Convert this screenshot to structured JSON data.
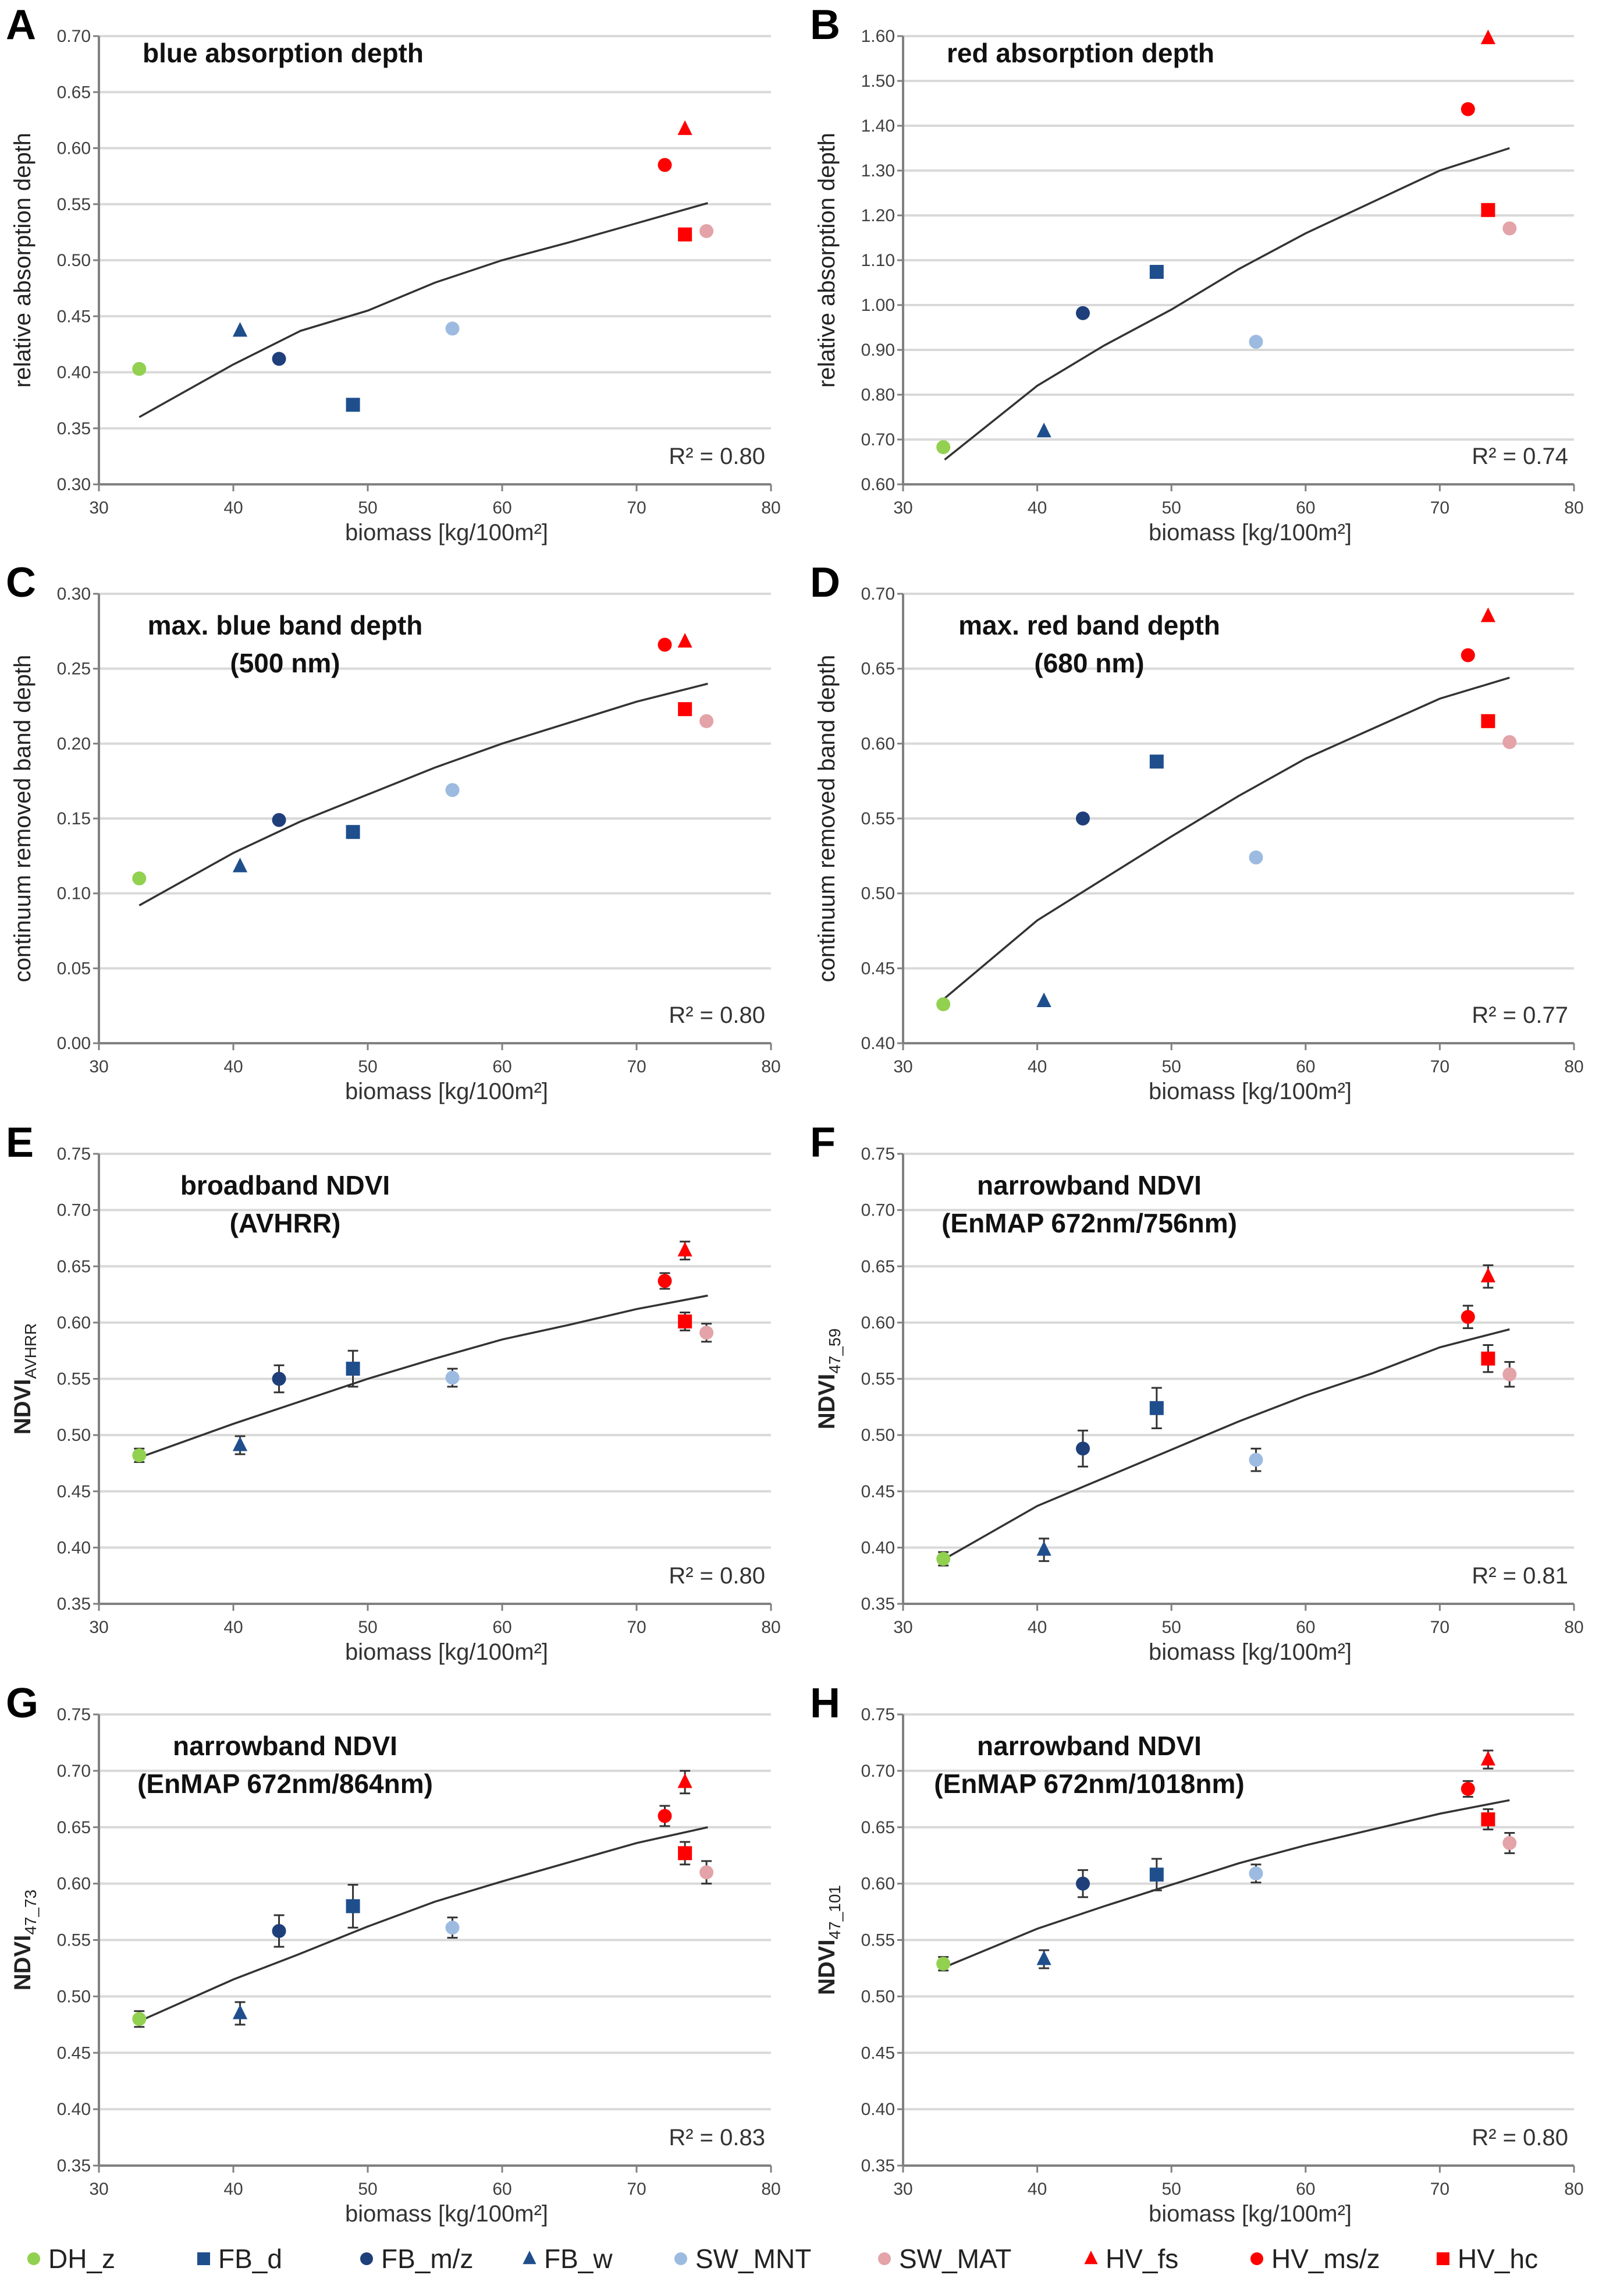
{
  "legend": [
    {
      "name": "DH_z",
      "marker": "circle",
      "color": "#92d050"
    },
    {
      "name": "FB_d",
      "marker": "square",
      "color": "#1f4e8c"
    },
    {
      "name": "FB_m/z",
      "marker": "circle",
      "color": "#1f3f7a"
    },
    {
      "name": "FB_w",
      "marker": "triangle",
      "color": "#1f4e8c"
    },
    {
      "name": "SW_MNT",
      "marker": "circle",
      "color": "#9dbbe0"
    },
    {
      "name": "SW_MAT",
      "marker": "circle",
      "color": "#e3a3a8"
    },
    {
      "name": "HV_fs",
      "marker": "triangle",
      "color": "#ff0000"
    },
    {
      "name": "HV_ms/z",
      "marker": "circle",
      "color": "#ff0000"
    },
    {
      "name": "HV_hc",
      "marker": "square",
      "color": "#ff0000"
    }
  ],
  "chart_data": [
    {
      "panel": "A",
      "type": "scatter",
      "title": "blue absorption depth",
      "xlabel": "biomass [kg/100m²]",
      "ylabel": "relative absorption depth",
      "xlim": [
        30,
        80
      ],
      "ylim": [
        0.3,
        0.7
      ],
      "xticks": [
        "30",
        "40",
        "50",
        "60",
        "70",
        "80"
      ],
      "yticks": [
        "0.30",
        "0.35",
        "0.40",
        "0.45",
        "0.50",
        "0.55",
        "0.60",
        "0.65",
        "0.70"
      ],
      "grid": true,
      "r2": "R² = 0.80",
      "trend": [
        [
          33,
          0.36
        ],
        [
          40,
          0.407
        ],
        [
          45,
          0.437
        ],
        [
          50,
          0.455
        ],
        [
          55,
          0.48
        ],
        [
          60,
          0.5
        ],
        [
          65,
          0.516
        ],
        [
          70,
          0.533
        ],
        [
          75.3,
          0.551
        ]
      ],
      "points": [
        {
          "series": "DH_z",
          "x": 33,
          "y": 0.403
        },
        {
          "series": "FB_w",
          "x": 40.5,
          "y": 0.437
        },
        {
          "series": "FB_m/z",
          "x": 43.4,
          "y": 0.412
        },
        {
          "series": "FB_d",
          "x": 48.9,
          "y": 0.371
        },
        {
          "series": "SW_MNT",
          "x": 56.3,
          "y": 0.439
        },
        {
          "series": "HV_ms/z",
          "x": 72.1,
          "y": 0.585
        },
        {
          "series": "HV_fs",
          "x": 73.6,
          "y": 0.617
        },
        {
          "series": "HV_hc",
          "x": 73.6,
          "y": 0.523
        },
        {
          "series": "SW_MAT",
          "x": 75.2,
          "y": 0.526
        }
      ]
    },
    {
      "panel": "B",
      "type": "scatter",
      "title": "red absorption depth",
      "xlabel": "biomass [kg/100m²]",
      "ylabel": "relative absorption depth",
      "xlim": [
        30,
        80
      ],
      "ylim": [
        0.6,
        1.6
      ],
      "xticks": [
        "30",
        "40",
        "50",
        "60",
        "70",
        "80"
      ],
      "yticks": [
        "0.60",
        "0.70",
        "0.80",
        "0.90",
        "1.00",
        "1.10",
        "1.20",
        "1.30",
        "1.40",
        "1.50",
        "1.60"
      ],
      "grid": true,
      "r2": "R² = 0.74",
      "trend": [
        [
          33.1,
          0.655
        ],
        [
          40,
          0.82
        ],
        [
          45,
          0.91
        ],
        [
          50,
          0.99
        ],
        [
          55,
          1.08
        ],
        [
          60,
          1.16
        ],
        [
          65,
          1.23
        ],
        [
          70,
          1.3
        ],
        [
          75.2,
          1.35
        ]
      ],
      "points": [
        {
          "series": "DH_z",
          "x": 33,
          "y": 0.683
        },
        {
          "series": "FB_w",
          "x": 40.5,
          "y": 0.718
        },
        {
          "series": "FB_m/z",
          "x": 43.4,
          "y": 0.982
        },
        {
          "series": "FB_d",
          "x": 48.9,
          "y": 1.074
        },
        {
          "series": "SW_MNT",
          "x": 56.3,
          "y": 0.918
        },
        {
          "series": "HV_ms/z",
          "x": 72.1,
          "y": 1.437
        },
        {
          "series": "HV_fs",
          "x": 73.6,
          "y": 1.595
        },
        {
          "series": "HV_hc",
          "x": 73.6,
          "y": 1.212
        },
        {
          "series": "SW_MAT",
          "x": 75.2,
          "y": 1.171
        }
      ]
    },
    {
      "panel": "C",
      "type": "scatter",
      "title": "max. blue band depth",
      "subtitle": "(500 nm)",
      "xlabel": "biomass [kg/100m²]",
      "ylabel": "continuum removed band depth",
      "xlim": [
        30,
        80
      ],
      "ylim": [
        0.0,
        0.3
      ],
      "xticks": [
        "30",
        "40",
        "50",
        "60",
        "70",
        "80"
      ],
      "yticks": [
        "0.00",
        "0.05",
        "0.10",
        "0.15",
        "0.20",
        "0.25",
        "0.30"
      ],
      "grid": true,
      "r2": "R² = 0.80",
      "trend": [
        [
          33,
          0.092
        ],
        [
          40,
          0.127
        ],
        [
          45,
          0.148
        ],
        [
          50,
          0.166
        ],
        [
          55,
          0.184
        ],
        [
          60,
          0.2
        ],
        [
          65,
          0.214
        ],
        [
          70,
          0.228
        ],
        [
          75.3,
          0.24
        ]
      ],
      "points": [
        {
          "series": "DH_z",
          "x": 33,
          "y": 0.11
        },
        {
          "series": "FB_w",
          "x": 40.5,
          "y": 0.118
        },
        {
          "series": "FB_m/z",
          "x": 43.4,
          "y": 0.149
        },
        {
          "series": "FB_d",
          "x": 48.9,
          "y": 0.141
        },
        {
          "series": "SW_MNT",
          "x": 56.3,
          "y": 0.169
        },
        {
          "series": "HV_ms/z",
          "x": 72.1,
          "y": 0.266
        },
        {
          "series": "HV_fs",
          "x": 73.6,
          "y": 0.268
        },
        {
          "series": "HV_hc",
          "x": 73.6,
          "y": 0.223
        },
        {
          "series": "SW_MAT",
          "x": 75.2,
          "y": 0.215
        }
      ]
    },
    {
      "panel": "D",
      "type": "scatter",
      "title": "max. red band depth",
      "subtitle": "(680 nm)",
      "xlabel": "biomass [kg/100m²]",
      "ylabel": "continuum removed band depth",
      "xlim": [
        30,
        80
      ],
      "ylim": [
        0.4,
        0.7
      ],
      "xticks": [
        "30",
        "40",
        "50",
        "60",
        "70",
        "80"
      ],
      "yticks": [
        "0.40",
        "0.45",
        "0.50",
        "0.55",
        "0.60",
        "0.65",
        "0.70"
      ],
      "grid": true,
      "r2": "R² = 0.77",
      "trend": [
        [
          33.1,
          0.43
        ],
        [
          40,
          0.482
        ],
        [
          45,
          0.51
        ],
        [
          50,
          0.538
        ],
        [
          55,
          0.565
        ],
        [
          60,
          0.59
        ],
        [
          65,
          0.61
        ],
        [
          70,
          0.63
        ],
        [
          75.2,
          0.644
        ]
      ],
      "points": [
        {
          "series": "DH_z",
          "x": 33,
          "y": 0.426
        },
        {
          "series": "FB_w",
          "x": 40.5,
          "y": 0.428
        },
        {
          "series": "FB_m/z",
          "x": 43.4,
          "y": 0.55
        },
        {
          "series": "FB_d",
          "x": 48.9,
          "y": 0.588
        },
        {
          "series": "SW_MNT",
          "x": 56.3,
          "y": 0.524
        },
        {
          "series": "HV_ms/z",
          "x": 72.1,
          "y": 0.659
        },
        {
          "series": "HV_fs",
          "x": 73.6,
          "y": 0.685
        },
        {
          "series": "HV_hc",
          "x": 73.6,
          "y": 0.615
        },
        {
          "series": "SW_MAT",
          "x": 75.2,
          "y": 0.601
        }
      ]
    },
    {
      "panel": "E",
      "type": "scatter",
      "title": "broadband NDVI",
      "subtitle": "(AVHRR)",
      "xlabel": "biomass [kg/100m²]",
      "ylabel": "NDVI",
      "ylabel_sub": "AVHRR",
      "xlim": [
        30,
        80
      ],
      "ylim": [
        0.35,
        0.75
      ],
      "xticks": [
        "30",
        "40",
        "50",
        "60",
        "70",
        "80"
      ],
      "yticks": [
        "0.35",
        "0.40",
        "0.45",
        "0.50",
        "0.55",
        "0.60",
        "0.65",
        "0.70",
        "0.75"
      ],
      "grid": true,
      "r2": "R² = 0.80",
      "trend": [
        [
          33,
          0.48
        ],
        [
          40,
          0.51
        ],
        [
          45,
          0.53
        ],
        [
          50,
          0.55
        ],
        [
          55,
          0.568
        ],
        [
          60,
          0.585
        ],
        [
          65,
          0.598
        ],
        [
          70,
          0.612
        ],
        [
          75.3,
          0.624
        ]
      ],
      "points": [
        {
          "series": "DH_z",
          "x": 33,
          "y": 0.482,
          "err": 0.006
        },
        {
          "series": "FB_w",
          "x": 40.5,
          "y": 0.491,
          "err": 0.008
        },
        {
          "series": "FB_m/z",
          "x": 43.4,
          "y": 0.55,
          "err": 0.012
        },
        {
          "series": "FB_d",
          "x": 48.9,
          "y": 0.559,
          "err": 0.016
        },
        {
          "series": "SW_MNT",
          "x": 56.3,
          "y": 0.551,
          "err": 0.008
        },
        {
          "series": "HV_ms/z",
          "x": 72.1,
          "y": 0.637,
          "err": 0.007
        },
        {
          "series": "HV_fs",
          "x": 73.6,
          "y": 0.664,
          "err": 0.008
        },
        {
          "series": "HV_hc",
          "x": 73.6,
          "y": 0.601,
          "err": 0.008
        },
        {
          "series": "SW_MAT",
          "x": 75.2,
          "y": 0.591,
          "err": 0.008
        }
      ]
    },
    {
      "panel": "F",
      "type": "scatter",
      "title": "narrowband NDVI",
      "subtitle": "(EnMAP 672nm/756nm)",
      "xlabel": "biomass [kg/100m²]",
      "ylabel": "NDVI",
      "ylabel_sub": "47_59",
      "xlim": [
        30,
        80
      ],
      "ylim": [
        0.35,
        0.75
      ],
      "xticks": [
        "30",
        "40",
        "50",
        "60",
        "70",
        "80"
      ],
      "yticks": [
        "0.35",
        "0.40",
        "0.45",
        "0.50",
        "0.55",
        "0.60",
        "0.65",
        "0.70",
        "0.75"
      ],
      "grid": true,
      "r2": "R² = 0.81",
      "trend": [
        [
          33.1,
          0.39
        ],
        [
          40,
          0.437
        ],
        [
          45,
          0.462
        ],
        [
          50,
          0.487
        ],
        [
          55,
          0.512
        ],
        [
          60,
          0.535
        ],
        [
          65,
          0.555
        ],
        [
          70,
          0.578
        ],
        [
          75.2,
          0.594
        ]
      ],
      "points": [
        {
          "series": "DH_z",
          "x": 33,
          "y": 0.39,
          "err": 0.006
        },
        {
          "series": "FB_w",
          "x": 40.5,
          "y": 0.398,
          "err": 0.01
        },
        {
          "series": "FB_m/z",
          "x": 43.4,
          "y": 0.488,
          "err": 0.016
        },
        {
          "series": "FB_d",
          "x": 48.9,
          "y": 0.524,
          "err": 0.018
        },
        {
          "series": "SW_MNT",
          "x": 56.3,
          "y": 0.478,
          "err": 0.01
        },
        {
          "series": "HV_ms/z",
          "x": 72.1,
          "y": 0.605,
          "err": 0.01
        },
        {
          "series": "HV_fs",
          "x": 73.6,
          "y": 0.641,
          "err": 0.01
        },
        {
          "series": "HV_hc",
          "x": 73.6,
          "y": 0.568,
          "err": 0.012
        },
        {
          "series": "SW_MAT",
          "x": 75.2,
          "y": 0.554,
          "err": 0.011
        }
      ]
    },
    {
      "panel": "G",
      "type": "scatter",
      "title": "narrowband NDVI",
      "subtitle": "(EnMAP 672nm/864nm)",
      "xlabel": "biomass [kg/100m²]",
      "ylabel": "NDVI",
      "ylabel_sub": "47_73",
      "xlim": [
        30,
        80
      ],
      "ylim": [
        0.35,
        0.75
      ],
      "xticks": [
        "30",
        "40",
        "50",
        "60",
        "70",
        "80"
      ],
      "yticks": [
        "0.35",
        "0.40",
        "0.45",
        "0.50",
        "0.55",
        "0.60",
        "0.65",
        "0.70",
        "0.75"
      ],
      "grid": true,
      "r2": "R² = 0.83",
      "trend": [
        [
          33,
          0.478
        ],
        [
          40,
          0.515
        ],
        [
          45,
          0.538
        ],
        [
          50,
          0.562
        ],
        [
          55,
          0.584
        ],
        [
          60,
          0.602
        ],
        [
          65,
          0.619
        ],
        [
          70,
          0.636
        ],
        [
          75.3,
          0.65
        ]
      ],
      "points": [
        {
          "series": "DH_z",
          "x": 33,
          "y": 0.48,
          "err": 0.007
        },
        {
          "series": "FB_w",
          "x": 40.5,
          "y": 0.485,
          "err": 0.01
        },
        {
          "series": "FB_m/z",
          "x": 43.4,
          "y": 0.558,
          "err": 0.014
        },
        {
          "series": "FB_d",
          "x": 48.9,
          "y": 0.58,
          "err": 0.019
        },
        {
          "series": "SW_MNT",
          "x": 56.3,
          "y": 0.561,
          "err": 0.009
        },
        {
          "series": "HV_ms/z",
          "x": 72.1,
          "y": 0.66,
          "err": 0.009
        },
        {
          "series": "HV_fs",
          "x": 73.6,
          "y": 0.69,
          "err": 0.01
        },
        {
          "series": "HV_hc",
          "x": 73.6,
          "y": 0.627,
          "err": 0.01
        },
        {
          "series": "SW_MAT",
          "x": 75.2,
          "y": 0.61,
          "err": 0.01
        }
      ]
    },
    {
      "panel": "H",
      "type": "scatter",
      "title": "narrowband NDVI",
      "subtitle": "(EnMAP 672nm/1018nm)",
      "xlabel": "biomass [kg/100m²]",
      "ylabel": "NDVI",
      "ylabel_sub": "47_101",
      "xlim": [
        30,
        80
      ],
      "ylim": [
        0.35,
        0.75
      ],
      "xticks": [
        "30",
        "40",
        "50",
        "60",
        "70",
        "80"
      ],
      "yticks": [
        "0.35",
        "0.40",
        "0.45",
        "0.50",
        "0.55",
        "0.60",
        "0.65",
        "0.70",
        "0.75"
      ],
      "grid": true,
      "r2": "R² = 0.80",
      "trend": [
        [
          33.1,
          0.526
        ],
        [
          40,
          0.56
        ],
        [
          45,
          0.58
        ],
        [
          50,
          0.599
        ],
        [
          55,
          0.618
        ],
        [
          60,
          0.634
        ],
        [
          65,
          0.648
        ],
        [
          70,
          0.662
        ],
        [
          75.2,
          0.674
        ]
      ],
      "points": [
        {
          "series": "DH_z",
          "x": 33,
          "y": 0.529,
          "err": 0.006
        },
        {
          "series": "FB_w",
          "x": 40.5,
          "y": 0.533,
          "err": 0.008
        },
        {
          "series": "FB_m/z",
          "x": 43.4,
          "y": 0.6,
          "err": 0.012
        },
        {
          "series": "FB_d",
          "x": 48.9,
          "y": 0.608,
          "err": 0.014
        },
        {
          "series": "SW_MNT",
          "x": 56.3,
          "y": 0.609,
          "err": 0.008
        },
        {
          "series": "HV_ms/z",
          "x": 72.1,
          "y": 0.684,
          "err": 0.007
        },
        {
          "series": "HV_fs",
          "x": 73.6,
          "y": 0.71,
          "err": 0.008
        },
        {
          "series": "HV_hc",
          "x": 73.6,
          "y": 0.657,
          "err": 0.009
        },
        {
          "series": "SW_MAT",
          "x": 75.2,
          "y": 0.636,
          "err": 0.009
        }
      ]
    }
  ]
}
